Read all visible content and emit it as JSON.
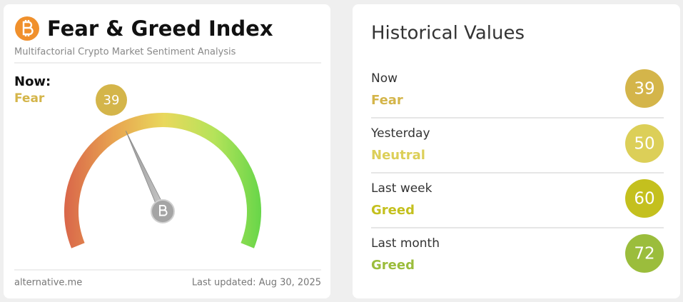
{
  "header": {
    "title": "Fear & Greed Index",
    "subtitle": "Multifactorial Crypto Market Sentiment Analysis"
  },
  "now": {
    "label": "Now:",
    "classification": "Fear",
    "value": 39,
    "color": "#d4b54a"
  },
  "footer": {
    "source": "alternative.me",
    "last_updated": "Last updated: Aug 30, 2025"
  },
  "historical": {
    "title": "Historical Values",
    "rows": [
      {
        "label": "Now",
        "classification": "Fear",
        "value": 39,
        "color": "#d4b54a"
      },
      {
        "label": "Yesterday",
        "classification": "Neutral",
        "value": 50,
        "color": "#dccf58"
      },
      {
        "label": "Last week",
        "classification": "Greed",
        "value": 60,
        "color": "#c4c01e"
      },
      {
        "label": "Last month",
        "classification": "Greed",
        "value": 72,
        "color": "#9bbd3c"
      }
    ]
  }
}
